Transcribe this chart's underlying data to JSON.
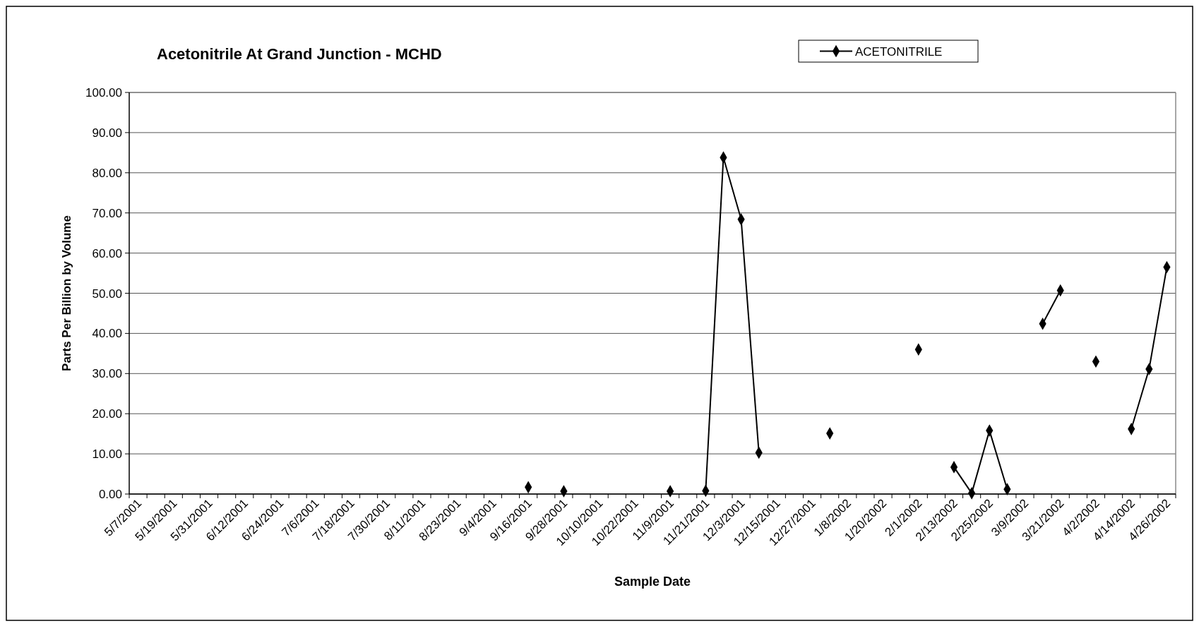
{
  "chart_data": {
    "type": "line",
    "title": "Acetonitrile At Grand Junction - MCHD",
    "xlabel": "Sample Date",
    "ylabel": "Parts Per Billion by Volume",
    "categories": [
      "5/7/2001",
      null,
      "5/19/2001",
      null,
      "5/31/2001",
      null,
      "6/12/2001",
      null,
      "6/24/2001",
      null,
      "7/6/2001",
      null,
      "7/18/2001",
      null,
      "7/30/2001",
      null,
      "8/11/2001",
      null,
      "8/23/2001",
      null,
      "9/4/2001",
      null,
      "9/16/2001",
      null,
      "9/28/2001",
      null,
      "10/10/2001",
      null,
      "10/22/2001",
      null,
      "11/9/2001",
      null,
      "11/21/2001",
      null,
      "12/3/2001",
      null,
      "12/15/2001",
      null,
      "12/27/2001",
      null,
      "1/8/2002",
      null,
      "1/20/2002",
      null,
      "2/1/2002",
      null,
      "2/13/2002",
      null,
      "2/25/2002",
      null,
      "3/9/2002",
      null,
      "3/21/2002",
      null,
      "4/2/2002",
      null,
      "4/14/2002",
      null,
      "4/26/2002"
    ],
    "series": [
      {
        "name": "ACETONITRILE",
        "color": "#000000",
        "values": [
          null,
          null,
          null,
          null,
          null,
          null,
          null,
          null,
          null,
          null,
          null,
          null,
          null,
          null,
          null,
          null,
          null,
          null,
          null,
          null,
          null,
          null,
          1.7,
          null,
          0.7,
          null,
          null,
          null,
          null,
          null,
          0.7,
          null,
          0.8,
          83.8,
          68.4,
          10.3,
          null,
          null,
          null,
          15.1,
          null,
          null,
          null,
          null,
          36.0,
          null,
          6.7,
          0.2,
          15.8,
          1.2,
          null,
          42.4,
          50.7,
          null,
          33.0,
          null,
          16.2,
          31.1,
          56.5
        ]
      }
    ],
    "ylim": [
      0,
      100
    ],
    "yticks": [
      {
        "value": 0,
        "label": "0.00"
      },
      {
        "value": 10,
        "label": "10.00"
      },
      {
        "value": 20,
        "label": "20.00"
      },
      {
        "value": 30,
        "label": "30.00"
      },
      {
        "value": 40,
        "label": "40.00"
      },
      {
        "value": 50,
        "label": "50.00"
      },
      {
        "value": 60,
        "label": "60.00"
      },
      {
        "value": 70,
        "label": "70.00"
      },
      {
        "value": 80,
        "label": "80.00"
      },
      {
        "value": 90,
        "label": "90.00"
      },
      {
        "value": 100,
        "label": "100.00"
      }
    ],
    "grid": "y",
    "legend": "top right",
    "marker": "diamond",
    "line_style": "solid"
  }
}
